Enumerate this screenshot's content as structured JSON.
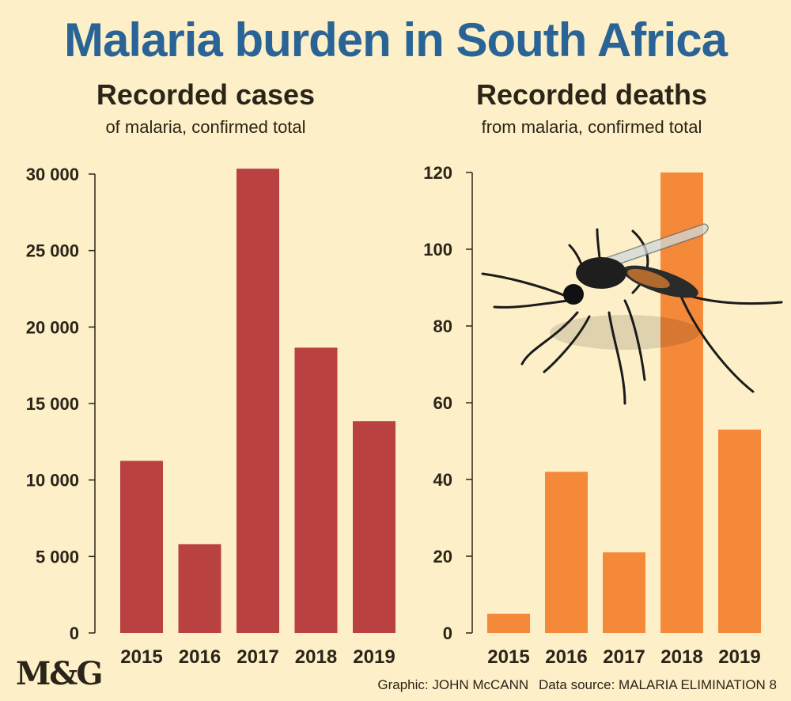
{
  "title": "Malaria burden in South Africa",
  "logo": "M&G",
  "credits": {
    "graphic": "Graphic: JOHN McCANN",
    "source": "Data source: MALARIA ELIMINATION 8"
  },
  "colors": {
    "background": "#fdf0c8",
    "title": "#2a6496",
    "cases_bar": "#b94141",
    "deaths_bar": "#f5893a",
    "axis": "#2b2418"
  },
  "illustration": "mosquito-icon",
  "chart_data": [
    {
      "type": "bar",
      "title": "Recorded cases",
      "subtitle": "of malaria, confirmed total",
      "categories": [
        "2015",
        "2016",
        "2017",
        "2018",
        "2019"
      ],
      "values": [
        11250,
        5800,
        30350,
        18650,
        13850
      ],
      "ylim": [
        0,
        30000
      ],
      "yticks": [
        0,
        5000,
        10000,
        15000,
        20000,
        25000,
        30000
      ],
      "ytick_labels": [
        "0",
        "5 000",
        "10 000",
        "15 000",
        "20 000",
        "25 000",
        "30 000"
      ],
      "grid": false,
      "legend": "none"
    },
    {
      "type": "bar",
      "title": "Recorded deaths",
      "subtitle": "from malaria, confirmed total",
      "categories": [
        "2015",
        "2016",
        "2017",
        "2018",
        "2019"
      ],
      "values": [
        5,
        42,
        21,
        120,
        53
      ],
      "ylim": [
        0,
        120
      ],
      "yticks": [
        0,
        20,
        40,
        60,
        80,
        100,
        120
      ],
      "ytick_labels": [
        "0",
        "20",
        "40",
        "60",
        "80",
        "100",
        "120"
      ],
      "grid": false,
      "legend": "none"
    }
  ]
}
